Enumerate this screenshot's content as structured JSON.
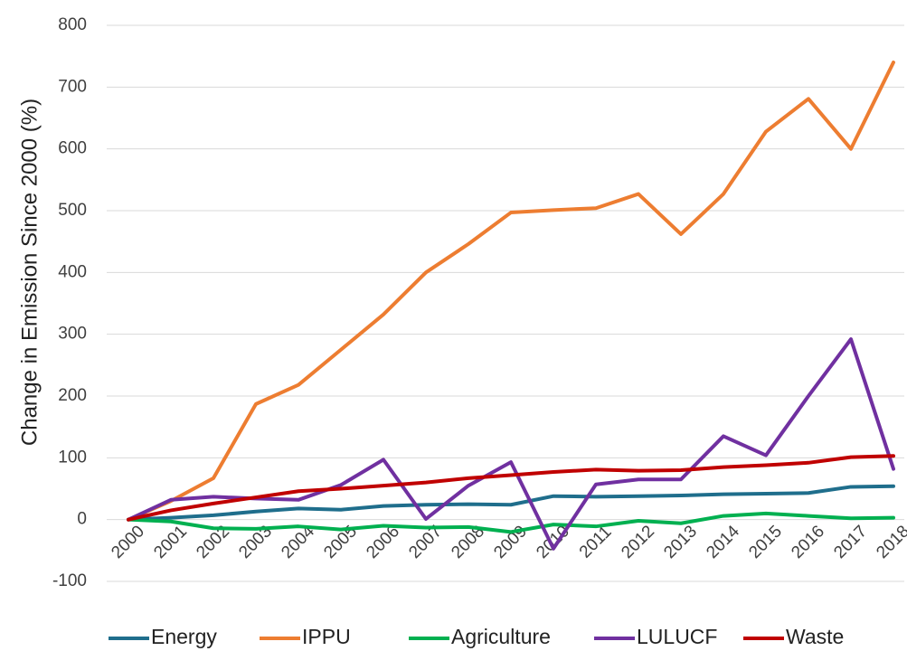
{
  "chart_data": {
    "type": "line",
    "y_label": "Change in Emission Since 2000 (%)",
    "categories": [
      "2000",
      "2001",
      "2002",
      "2003",
      "2004",
      "2005",
      "2006",
      "2007",
      "2008",
      "2009",
      "2010",
      "2011",
      "2012",
      "2013",
      "2014",
      "2015",
      "2016",
      "2017",
      "2018"
    ],
    "series": [
      {
        "name": "Energy",
        "color": "#1f6e8c",
        "values": [
          0,
          3,
          7,
          13,
          18,
          16,
          22,
          24,
          25,
          24,
          38,
          37,
          38,
          39,
          41,
          42,
          43,
          53,
          54
        ]
      },
      {
        "name": "IPPU",
        "color": "#ed7d31",
        "values": [
          0,
          30,
          67,
          187,
          218,
          275,
          332,
          400,
          446,
          497,
          501,
          504,
          527,
          462,
          527,
          628,
          681,
          600,
          740
        ]
      },
      {
        "name": "Agriculture",
        "color": "#00b050",
        "values": [
          0,
          -3,
          -14,
          -15,
          -11,
          -16,
          -10,
          -13,
          -12,
          -20,
          -8,
          -11,
          -2,
          -6,
          6,
          10,
          6,
          2,
          3
        ]
      },
      {
        "name": "LULUCF",
        "color": "#7030a0",
        "values": [
          0,
          32,
          37,
          34,
          32,
          56,
          97,
          1,
          55,
          93,
          -47,
          57,
          65,
          65,
          135,
          104,
          200,
          292,
          82
        ]
      },
      {
        "name": "Waste",
        "color": "#c00000",
        "values": [
          0,
          15,
          26,
          36,
          46,
          50,
          55,
          60,
          67,
          72,
          77,
          81,
          79,
          80,
          85,
          88,
          92,
          101,
          103
        ]
      }
    ],
    "ylim": [
      -100,
      800
    ],
    "yticks": [
      -100,
      0,
      100,
      200,
      300,
      400,
      500,
      600,
      700,
      800
    ],
    "grid": true,
    "legend": "bottom"
  }
}
